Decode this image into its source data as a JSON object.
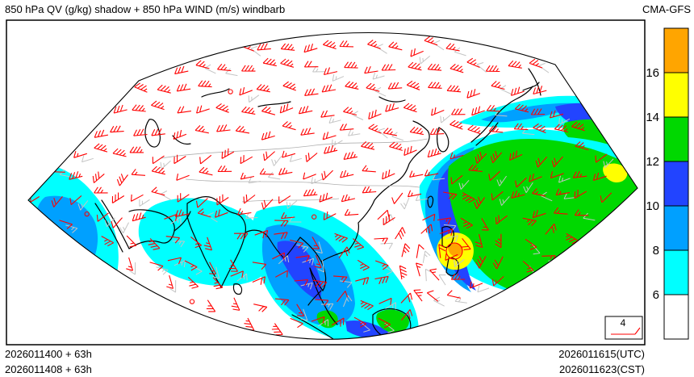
{
  "header": {
    "title": "850 hPa QV (g/kg) shadow + 850 hPa WIND (m/s) windbarb",
    "model": "CMA-GFS"
  },
  "footer": {
    "run_utc": "2026011400 + 63h",
    "run_cst": "2026011408 + 63h",
    "valid_utc": "2026011615(UTC)",
    "valid_cst": "2026011623(CST)"
  },
  "legend": {
    "ref_value": "4"
  },
  "colorbar": {
    "labels": [
      "16",
      "14",
      "12",
      "10",
      "8",
      "6"
    ],
    "colors_top_to_bottom": [
      "#ffa500",
      "#ffff00",
      "#00d800",
      "#2244ff",
      "#00a0ff",
      "#00ffff",
      "#ffffff"
    ]
  },
  "map": {
    "barb_color": "#ff0000",
    "secondary_barb_color": "#c4c4c4",
    "coastline_color": "#000000",
    "border_color": "#b0b0b0"
  },
  "chart_data": {
    "type": "heatmap",
    "subtype": "weather-map",
    "title": "850 hPa QV (g/kg) shadow + 850 hPa WIND (m/s) windbarb",
    "model": "CMA-GFS",
    "shaded_field": {
      "variable": "QV specific humidity",
      "units": "g/kg"
    },
    "overlay_field": {
      "variable": "850 hPa wind",
      "units": "m/s",
      "glyph": "windbarb",
      "color": "#ff0000",
      "reference_value": 4
    },
    "color_scale": {
      "levels": [
        6,
        8,
        10,
        12,
        14,
        16
      ],
      "colors_low_to_high": [
        "#ffffff",
        "#00ffff",
        "#00a0ff",
        "#2244ff",
        "#00d800",
        "#ffff00",
        "#ffa500"
      ]
    },
    "times": {
      "run_labels": [
        "2026011400 + 63h",
        "2026011408 + 63h"
      ],
      "valid_labels": [
        "2026011615(UTC)",
        "2026011623(CST)"
      ]
    },
    "legend_position": "right-colorbar",
    "grid": false
  }
}
